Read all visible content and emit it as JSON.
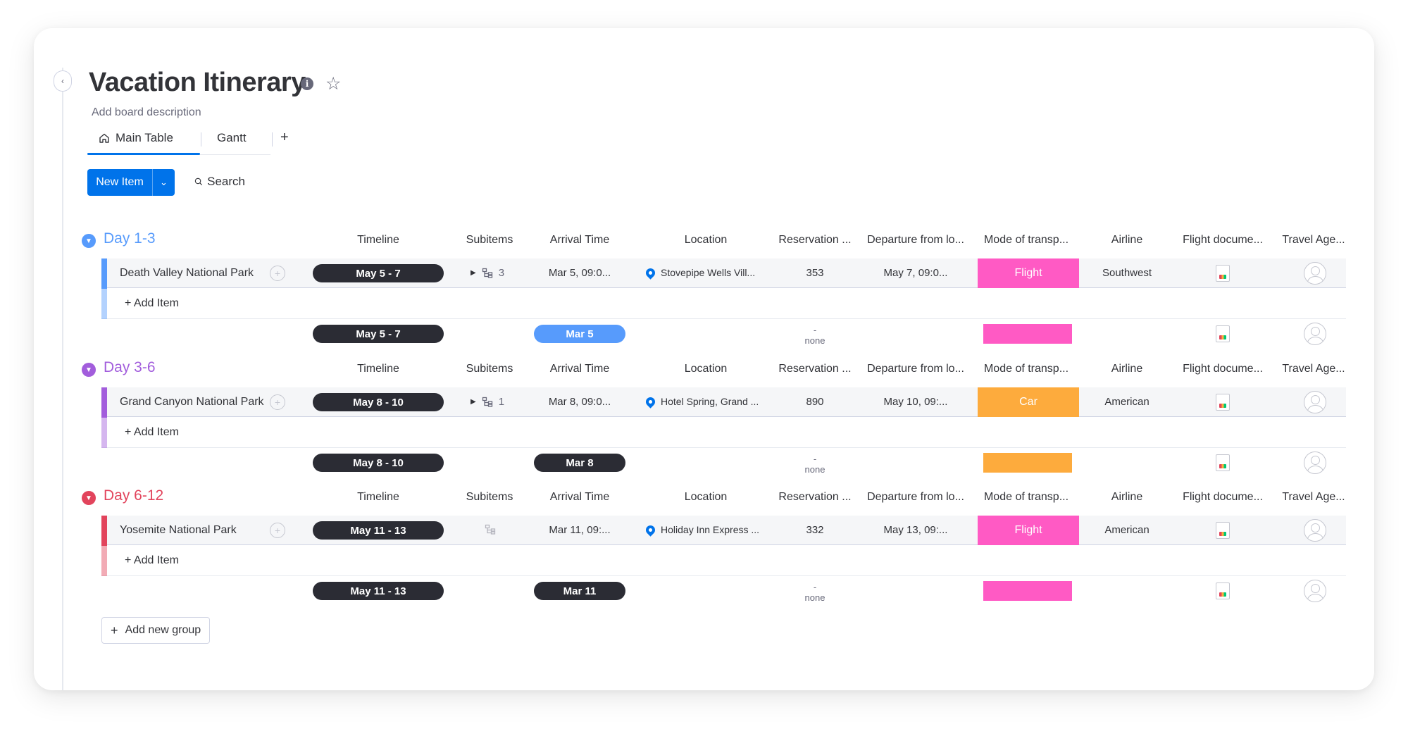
{
  "board": {
    "title": "Vacation Itinerary",
    "description": "Add board description",
    "tabs": [
      {
        "label": "Main Table",
        "icon": "home-icon",
        "active": true
      },
      {
        "label": "Gantt",
        "active": false
      }
    ],
    "add_tab": "+",
    "new_item": "New Item",
    "search": "Search",
    "add_group": "Add new group"
  },
  "columns": [
    "Timeline",
    "Subitems",
    "Arrival Time",
    "Location",
    "Reservation ...",
    "Departure from lo...",
    "Mode of transp...",
    "Airline",
    "Flight docume...",
    "Travel Age..."
  ],
  "colors": {
    "day1": "#579bfc",
    "day2": "#a25ddc",
    "day3": "#e2445c",
    "flight": "#ff5ac4",
    "car": "#fdab3d",
    "primary": "#0073ea"
  },
  "groups": [
    {
      "title": "Day 1-3",
      "item": {
        "name": "Death Valley National Park",
        "timeline": "May 5 - 7",
        "subitems": "3",
        "arrival": "Mar 5, 09:0...",
        "location": "Stovepipe Wells Vill...",
        "reservation": "353",
        "departure": "May 7, 09:0...",
        "mode": "Flight",
        "airline": "Southwest"
      },
      "add_item": "+ Add Item",
      "summary": {
        "timeline": "May 5 - 7",
        "arrival": "Mar 5",
        "reservation_dash": "-",
        "reservation_none": "none"
      }
    },
    {
      "title": "Day 3-6",
      "item": {
        "name": "Grand Canyon National Park",
        "timeline": "May 8 - 10",
        "subitems": "1",
        "arrival": "Mar 8, 09:0...",
        "location": "Hotel Spring, Grand ...",
        "reservation": "890",
        "departure": "May 10, 09:...",
        "mode": "Car",
        "airline": "American"
      },
      "add_item": "+ Add Item",
      "summary": {
        "timeline": "May 8 - 10",
        "arrival": "Mar 8",
        "reservation_dash": "-",
        "reservation_none": "none"
      }
    },
    {
      "title": "Day 6-12",
      "item": {
        "name": "Yosemite National Park",
        "timeline": "May 11 - 13",
        "subitems": "",
        "arrival": "Mar 11, 09:...",
        "location": "Holiday Inn Express ...",
        "reservation": "332",
        "departure": "May 13, 09:...",
        "mode": "Flight",
        "airline": "American"
      },
      "add_item": "+ Add Item",
      "summary": {
        "timeline": "May 11 - 13",
        "arrival": "Mar 11",
        "reservation_dash": "-",
        "reservation_none": "none"
      }
    }
  ]
}
